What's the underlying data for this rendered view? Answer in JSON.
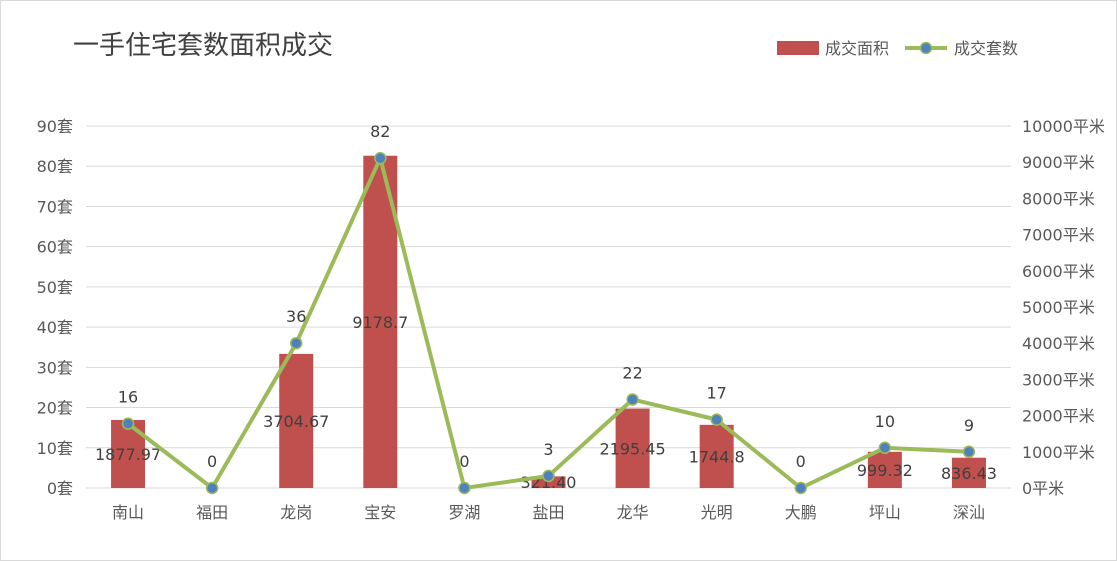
{
  "chart_data": {
    "type": "bar+line",
    "title": "一手住宅套数面积成交",
    "categories": [
      "南山",
      "福田",
      "龙岗",
      "宝安",
      "罗湖",
      "盐田",
      "龙华",
      "光明",
      "大鹏",
      "坪山",
      "深汕"
    ],
    "series": [
      {
        "name": "成交面积",
        "type": "bar",
        "axis": "right",
        "values": [
          1877.97,
          0,
          3704.67,
          9178.7,
          0,
          321.4,
          2195.45,
          1744.8,
          0,
          999.32,
          836.43
        ],
        "labels": [
          "1877.97",
          "",
          "3704.67",
          "9178.7",
          "",
          "321.40",
          "2195.45",
          "1744.8",
          "",
          "999.32",
          "836.43"
        ],
        "color": "#c0504d"
      },
      {
        "name": "成交套数",
        "type": "line",
        "axis": "left",
        "values": [
          16,
          0,
          36,
          82,
          0,
          3,
          22,
          17,
          0,
          10,
          9
        ],
        "labels": [
          "16",
          "0",
          "36",
          "82",
          "0",
          "3",
          "22",
          "17",
          "0",
          "10",
          "9"
        ],
        "color": "#9bbb59",
        "marker_color": "#4f81bd"
      }
    ],
    "y_left": {
      "min": 0,
      "max": 90,
      "step": 10,
      "ticks": [
        "0套",
        "10套",
        "20套",
        "30套",
        "40套",
        "50套",
        "60套",
        "70套",
        "80套",
        "90套"
      ]
    },
    "y_right": {
      "min": 0,
      "max": 10000,
      "step": 1000,
      "ticks": [
        "0平米",
        "1000平米",
        "2000平米",
        "3000平米",
        "4000平米",
        "5000平米",
        "6000平米",
        "7000平米",
        "8000平米",
        "9000平米",
        "10000平米"
      ]
    },
    "grid": true,
    "legend_position": "top-right"
  }
}
